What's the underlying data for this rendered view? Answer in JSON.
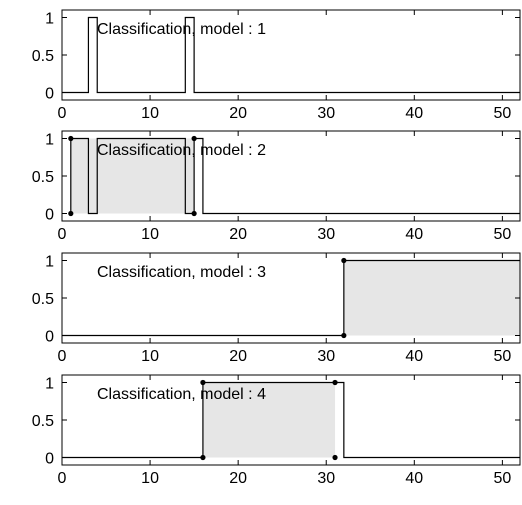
{
  "chart_data": [
    {
      "type": "line",
      "title": "Classification, model : 1",
      "xlim": [
        0,
        52
      ],
      "ylim": [
        -0.1,
        1.1
      ],
      "x_ticks": [
        0,
        10,
        20,
        30,
        40,
        50
      ],
      "y_ticks": [
        0,
        0.5,
        1
      ],
      "x_tick_labels": [
        "0",
        "10",
        "20",
        "30",
        "40",
        "50"
      ],
      "y_tick_labels": [
        "0",
        "0.5",
        "1"
      ],
      "grid": false,
      "series": [
        {
          "x": [
            0,
            3,
            3,
            4,
            4,
            14,
            14,
            15,
            15,
            52
          ],
          "y": [
            0,
            0,
            1,
            1,
            0,
            0,
            1,
            1,
            0,
            0
          ]
        }
      ],
      "markers": [],
      "shaded_intervals": []
    },
    {
      "type": "line",
      "title": "Classification, model : 2",
      "xlim": [
        0,
        52
      ],
      "ylim": [
        -0.1,
        1.1
      ],
      "x_ticks": [
        0,
        10,
        20,
        30,
        40,
        50
      ],
      "y_ticks": [
        0,
        0.5,
        1
      ],
      "x_tick_labels": [
        "0",
        "10",
        "20",
        "30",
        "40",
        "50"
      ],
      "y_tick_labels": [
        "0",
        "0.5",
        "1"
      ],
      "grid": false,
      "series": [
        {
          "x": [
            1,
            1,
            3,
            3,
            4,
            4,
            14,
            14,
            15,
            15,
            16,
            16,
            52
          ],
          "y": [
            0,
            1,
            1,
            0,
            0,
            1,
            1,
            0,
            0,
            1,
            1,
            0,
            0
          ]
        }
      ],
      "markers": [
        {
          "x": 1,
          "y": 1
        },
        {
          "x": 1,
          "y": 0
        },
        {
          "x": 15,
          "y": 1
        },
        {
          "x": 15,
          "y": 0
        }
      ],
      "shaded_intervals": [
        [
          1,
          15
        ]
      ]
    },
    {
      "type": "line",
      "title": "Classification, model : 3",
      "xlim": [
        0,
        52
      ],
      "ylim": [
        -0.1,
        1.1
      ],
      "x_ticks": [
        0,
        10,
        20,
        30,
        40,
        50
      ],
      "y_ticks": [
        0,
        0.5,
        1
      ],
      "x_tick_labels": [
        "0",
        "10",
        "20",
        "30",
        "40",
        "50"
      ],
      "y_tick_labels": [
        "0",
        "0.5",
        "1"
      ],
      "grid": false,
      "series": [
        {
          "x": [
            0,
            32,
            32,
            52
          ],
          "y": [
            0,
            0,
            1,
            1
          ]
        }
      ],
      "markers": [
        {
          "x": 32,
          "y": 1
        },
        {
          "x": 32,
          "y": 0
        }
      ],
      "shaded_intervals": [
        [
          32,
          52
        ]
      ]
    },
    {
      "type": "line",
      "title": "Classification, model : 4",
      "xlim": [
        0,
        52
      ],
      "ylim": [
        -0.1,
        1.1
      ],
      "x_ticks": [
        0,
        10,
        20,
        30,
        40,
        50
      ],
      "y_ticks": [
        0,
        0.5,
        1
      ],
      "x_tick_labels": [
        "0",
        "10",
        "20",
        "30",
        "40",
        "50"
      ],
      "y_tick_labels": [
        "0",
        "0.5",
        "1"
      ],
      "grid": false,
      "series": [
        {
          "x": [
            0,
            16,
            16,
            32,
            32,
            52
          ],
          "y": [
            0,
            0,
            1,
            1,
            0,
            0
          ]
        }
      ],
      "markers": [
        {
          "x": 16,
          "y": 1
        },
        {
          "x": 16,
          "y": 0
        },
        {
          "x": 31,
          "y": 1
        },
        {
          "x": 31,
          "y": 0
        }
      ],
      "shaded_intervals": [
        [
          16,
          31
        ]
      ]
    }
  ]
}
